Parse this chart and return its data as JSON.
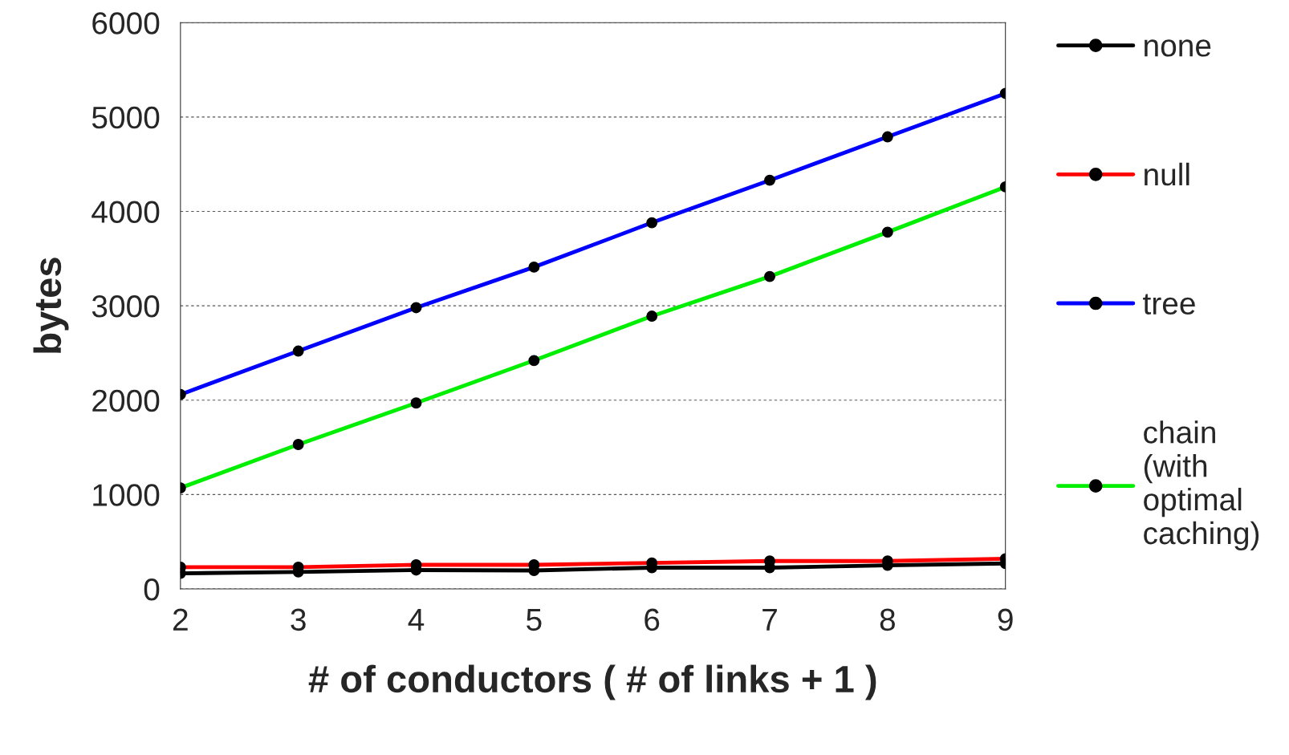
{
  "chart_data": {
    "type": "line",
    "xlabel": "# of conductors ( # of links + 1 )",
    "ylabel": "bytes",
    "x": [
      2,
      3,
      4,
      5,
      6,
      7,
      8,
      9
    ],
    "xlim": [
      2,
      9
    ],
    "xticks": [
      2,
      3,
      4,
      5,
      6,
      7,
      8,
      9
    ],
    "ylim": [
      0,
      6000
    ],
    "yticks": [
      0,
      1000,
      2000,
      3000,
      4000,
      5000,
      6000
    ],
    "grid": "y",
    "legend": "right",
    "marker": "circle",
    "series": [
      {
        "name": "none",
        "color": "#000000",
        "values": [
          165,
          180,
          200,
          195,
          225,
          225,
          250,
          270
        ]
      },
      {
        "name": "null",
        "color": "#ff0000",
        "values": [
          230,
          230,
          255,
          255,
          275,
          295,
          295,
          320
        ]
      },
      {
        "name": "tree",
        "color": "#0000ff",
        "values": [
          2060,
          2520,
          2980,
          3410,
          3880,
          4330,
          4790,
          5250
        ]
      },
      {
        "name": "chain\n(with\noptimal\ncaching)",
        "color": "#00ee00",
        "values": [
          1070,
          1530,
          1970,
          2420,
          2890,
          3310,
          3780,
          4260
        ]
      }
    ]
  }
}
